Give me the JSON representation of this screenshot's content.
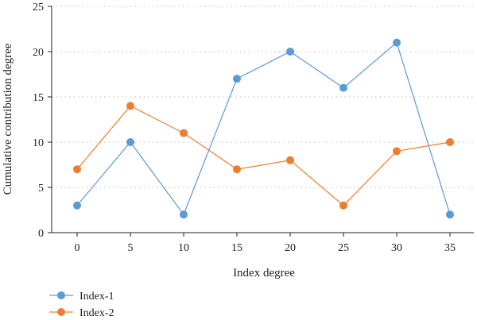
{
  "colors": {
    "index1": "#5b9bd5",
    "index2": "#ed7d31",
    "grid": "#bbbbbb",
    "axis": "#222222"
  },
  "chart_data": {
    "type": "line",
    "title": "",
    "xlabel": "Index degree",
    "ylabel": "Cumulative contribution degree",
    "x": [
      0,
      5,
      10,
      15,
      20,
      25,
      30,
      35
    ],
    "xticks": [
      "0",
      "5",
      "10",
      "15",
      "20",
      "25",
      "30",
      "35"
    ],
    "yticks": [
      "0",
      "5",
      "10",
      "15",
      "20",
      "25"
    ],
    "ylim": [
      0,
      25
    ],
    "grid": "horizontal dotted",
    "legend_position": "bottom-left",
    "series": [
      {
        "name": "Index-1",
        "values": [
          3,
          10,
          2,
          17,
          20,
          16,
          21,
          2
        ]
      },
      {
        "name": "Index-2",
        "values": [
          7,
          14,
          11,
          7,
          8,
          3,
          9,
          10
        ]
      }
    ]
  }
}
